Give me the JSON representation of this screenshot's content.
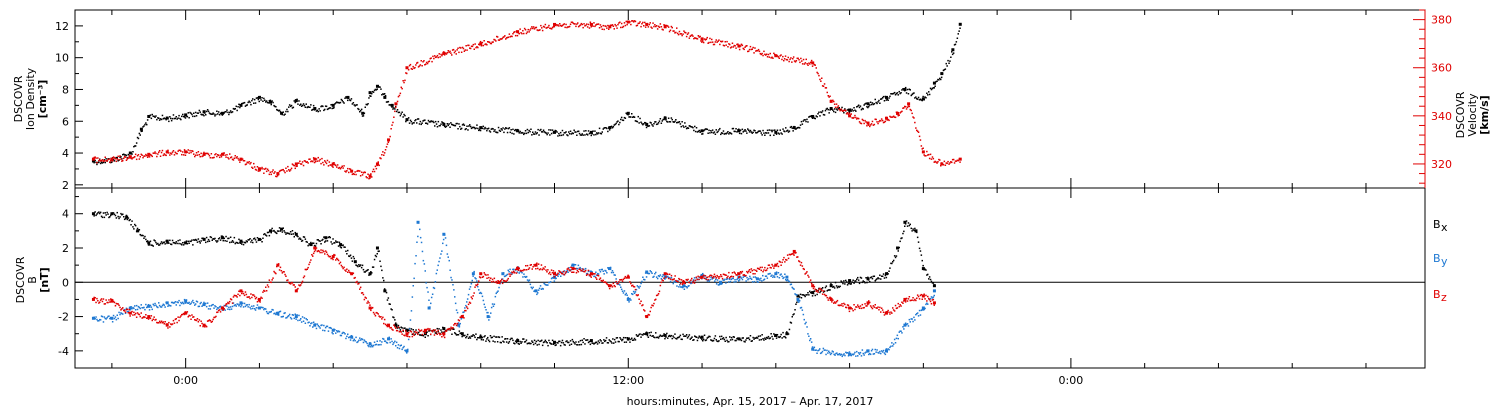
{
  "chart_data": [
    {
      "type": "scatter",
      "title": "",
      "ylabel_lines": [
        "DSCOVR",
        "Ion Density",
        "[cm⁻³]"
      ],
      "y2label_lines": [
        "DSCOVR",
        "Velocity",
        "[km/s]"
      ],
      "ylim": [
        1.8,
        13.0
      ],
      "y2lim": [
        310,
        384
      ],
      "yticks": [
        "2",
        "4",
        "6",
        "8",
        "10",
        "12"
      ],
      "y2ticks": [
        "320",
        "340",
        "360",
        "380"
      ],
      "colors": {
        "density": "#000000",
        "velocity": "#e00000"
      },
      "series": [
        {
          "key": "density",
          "x": [
            -2.5,
            -2.0,
            -1.5,
            -1.2,
            -1.0,
            -0.5,
            0.0,
            0.5,
            1.0,
            1.5,
            2.0,
            2.3,
            2.6,
            3.0,
            3.5,
            4.0,
            4.4,
            4.8,
            5.0,
            5.2,
            5.4,
            5.6,
            6.0,
            7.0,
            8.0,
            9.0,
            10.0,
            11.0,
            11.5,
            12.0,
            12.5,
            13.0,
            14.0,
            15.0,
            16.0,
            16.5,
            17.0,
            17.5,
            18.0,
            18.5,
            19.0,
            19.5,
            20.0,
            20.3,
            20.5,
            20.8,
            21.0
          ],
          "y": [
            3.5,
            3.6,
            4.0,
            5.5,
            6.3,
            6.2,
            6.4,
            6.6,
            6.5,
            7.0,
            7.5,
            7.2,
            6.5,
            7.3,
            6.8,
            7.0,
            7.5,
            6.5,
            7.8,
            8.2,
            7.5,
            7.0,
            6.1,
            5.8,
            5.6,
            5.4,
            5.3,
            5.3,
            5.6,
            6.5,
            5.8,
            6.2,
            5.4,
            5.4,
            5.3,
            5.6,
            6.3,
            6.8,
            6.7,
            7.1,
            7.5,
            8.0,
            7.4,
            8.4,
            9.0,
            10.5,
            12.1
          ]
        },
        {
          "key": "velocity",
          "axis": "right",
          "x": [
            -2.5,
            -2.0,
            -1.5,
            -1.0,
            -0.5,
            0.0,
            0.5,
            1.0,
            1.5,
            2.0,
            2.5,
            3.0,
            3.5,
            4.0,
            4.5,
            5.0,
            5.2,
            5.5,
            5.7,
            6.0,
            7.0,
            8.0,
            9.0,
            10.0,
            11.0,
            11.5,
            12.0,
            12.5,
            13.0,
            14.0,
            15.0,
            16.0,
            17.0,
            17.5,
            18.0,
            18.5,
            19.0,
            19.3,
            19.6,
            20.0,
            20.5,
            21.0
          ],
          "y": [
            322,
            322,
            323,
            324,
            325,
            325,
            324,
            324,
            322,
            318,
            316,
            320,
            322,
            320,
            317,
            315,
            320,
            330,
            345,
            360,
            366,
            370,
            375,
            378,
            378,
            377,
            379,
            378,
            377,
            372,
            369,
            365,
            362,
            346,
            340,
            337,
            339,
            341,
            345,
            325,
            320,
            322
          ]
        }
      ]
    },
    {
      "type": "scatter",
      "title": "",
      "ylabel_lines": [
        "DSCOVR",
        "B",
        "[nT]"
      ],
      "ylim": [
        -5.0,
        5.5
      ],
      "yticks": [
        "-4",
        "-2",
        "0",
        "2",
        "4"
      ],
      "zero_line": 0,
      "legend_position": "right",
      "colors": {
        "bx": "#000000",
        "by": "#1e78d2",
        "bz": "#e00000"
      },
      "series": [
        {
          "key": "bx",
          "name": "B",
          "subscript": "x",
          "x": [
            -2.5,
            -2.0,
            -1.6,
            -1.3,
            -1.0,
            -0.5,
            0.0,
            0.5,
            1.0,
            1.5,
            2.0,
            2.3,
            2.6,
            3.0,
            3.4,
            3.8,
            4.2,
            4.6,
            5.0,
            5.2,
            5.4,
            5.7,
            6.0,
            6.5,
            7.0,
            7.5,
            8.0,
            9.0,
            10.0,
            11.0,
            12.0,
            12.5,
            13.0,
            14.0,
            15.0,
            16.0,
            16.3,
            16.6,
            17.0,
            17.5,
            18.0,
            18.5,
            19.0,
            19.3,
            19.5,
            19.8,
            20.0,
            20.3
          ],
          "y": [
            4.0,
            4.0,
            3.8,
            3.0,
            2.3,
            2.4,
            2.3,
            2.5,
            2.6,
            2.4,
            2.5,
            3.0,
            3.1,
            2.8,
            2.2,
            2.6,
            2.2,
            1.2,
            0.5,
            2.0,
            -0.5,
            -2.5,
            -2.8,
            -3.0,
            -2.7,
            -3.0,
            -3.2,
            -3.4,
            -3.5,
            -3.4,
            -3.3,
            -3.0,
            -3.1,
            -3.2,
            -3.3,
            -3.1,
            -3.0,
            -0.8,
            -0.6,
            -0.2,
            0.1,
            0.2,
            0.5,
            2.0,
            3.5,
            3.0,
            0.8,
            -0.2
          ]
        },
        {
          "key": "by",
          "name": "B",
          "subscript": "y",
          "x": [
            -2.5,
            -2.0,
            -1.5,
            -1.0,
            -0.5,
            0.0,
            0.5,
            1.0,
            1.5,
            2.0,
            2.5,
            3.0,
            3.5,
            4.0,
            4.5,
            5.0,
            5.5,
            6.0,
            6.3,
            6.6,
            7.0,
            7.4,
            7.8,
            8.2,
            8.6,
            9.0,
            9.5,
            10.0,
            10.5,
            11.0,
            11.5,
            12.0,
            12.5,
            13.0,
            13.5,
            14.0,
            14.5,
            15.0,
            15.5,
            16.0,
            16.3,
            16.6,
            17.0,
            18.0,
            18.5,
            19.0,
            19.5,
            20.0,
            20.3
          ],
          "y": [
            -2.1,
            -2.1,
            -1.5,
            -1.4,
            -1.2,
            -1.1,
            -1.3,
            -1.5,
            -1.2,
            -1.5,
            -1.8,
            -2.0,
            -2.5,
            -2.8,
            -3.2,
            -3.6,
            -3.3,
            -4.0,
            3.5,
            -1.5,
            2.8,
            -2.5,
            0.5,
            -2.0,
            0.5,
            0.8,
            -0.5,
            0.3,
            1.0,
            0.5,
            0.8,
            -1.0,
            0.6,
            0.3,
            -0.2,
            0.4,
            0.0,
            0.3,
            0.2,
            0.5,
            0.3,
            -1.0,
            -3.9,
            -4.2,
            -4.0,
            -4.0,
            -2.5,
            -1.5,
            -0.5
          ]
        },
        {
          "key": "bz",
          "name": "B",
          "subscript": "z",
          "x": [
            -2.5,
            -2.0,
            -1.5,
            -1.0,
            -0.5,
            0.0,
            0.5,
            1.0,
            1.5,
            2.0,
            2.5,
            3.0,
            3.5,
            4.0,
            4.5,
            5.0,
            5.5,
            6.0,
            6.5,
            7.0,
            7.5,
            8.0,
            8.5,
            9.0,
            9.5,
            10.0,
            10.5,
            11.0,
            11.5,
            12.0,
            12.5,
            13.0,
            13.5,
            14.0,
            15.0,
            16.0,
            16.5,
            17.0,
            17.5,
            18.0,
            18.5,
            19.0,
            19.5,
            20.0,
            20.3
          ],
          "y": [
            -1.0,
            -1.1,
            -1.8,
            -2.0,
            -2.5,
            -1.8,
            -2.5,
            -1.5,
            -0.5,
            -1.0,
            1.0,
            -0.5,
            2.0,
            1.5,
            0.5,
            -1.5,
            -2.5,
            -3.0,
            -2.8,
            -3.0,
            -2.0,
            0.5,
            0.0,
            0.8,
            1.0,
            0.5,
            0.8,
            0.5,
            -0.2,
            0.3,
            -2.0,
            0.5,
            0.0,
            0.3,
            0.5,
            1.0,
            1.8,
            -0.2,
            -1.0,
            -1.5,
            -1.2,
            -1.8,
            -1.0,
            -0.8,
            -1.2
          ]
        }
      ]
    }
  ],
  "time_axis": {
    "xlim": [
      -3.0,
      33.6
    ],
    "major_ticks": [
      0,
      12,
      24
    ],
    "tick_labels": [
      "0:00",
      "12:00",
      "0:00"
    ],
    "minor_step": 2,
    "xlabel": "hours:minutes, Apr. 15, 2017 – Apr. 17, 2017"
  }
}
